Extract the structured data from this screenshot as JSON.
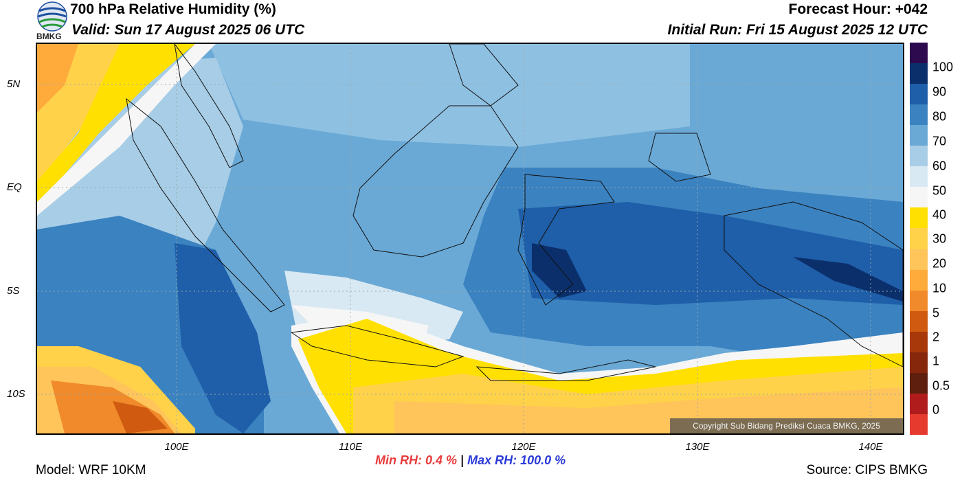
{
  "header": {
    "title": "700 hPa Relative Humidity (%)",
    "valid": "Valid: Sun 17 August 2025 06 UTC",
    "forecast_hour": "Forecast Hour: +042",
    "initial_run": "Initial Run: Fri 15 August 2025 12 UTC",
    "logo_text": "BMKG"
  },
  "axes": {
    "y_ticks": [
      "5N",
      "EQ",
      "5S",
      "10S"
    ],
    "x_ticks": [
      "100E",
      "110E",
      "120E",
      "130E",
      "140E"
    ]
  },
  "colorbar": {
    "labels": [
      "100",
      "90",
      "80",
      "70",
      "60",
      "50",
      "40",
      "30",
      "20",
      "10",
      "5",
      "2",
      "1",
      "0.5",
      "0"
    ],
    "colors": [
      "#2d0a4e",
      "#0b2f6b",
      "#1f5ea8",
      "#3b82c0",
      "#6aa9d6",
      "#a8cde6",
      "#d9e9f3",
      "#f6f6f6",
      "#ffe000",
      "#ffd24a",
      "#ffc45a",
      "#ffab3c",
      "#f08a2a",
      "#cf5a10",
      "#a8380a",
      "#86270c",
      "#5e1f0f",
      "#b01c1c",
      "#e63a2f"
    ]
  },
  "copyright": "Copyright Sub Bidang Prediksi Cuaca BMKG, 2025",
  "stats": {
    "min_rh": "Min RH:   0.4 %",
    "separator": "|",
    "max_rh": "Max RH: 100.0 %"
  },
  "footer": {
    "model": "Model: WRF 10KM",
    "source": "Source: CIPS BMKG"
  }
}
